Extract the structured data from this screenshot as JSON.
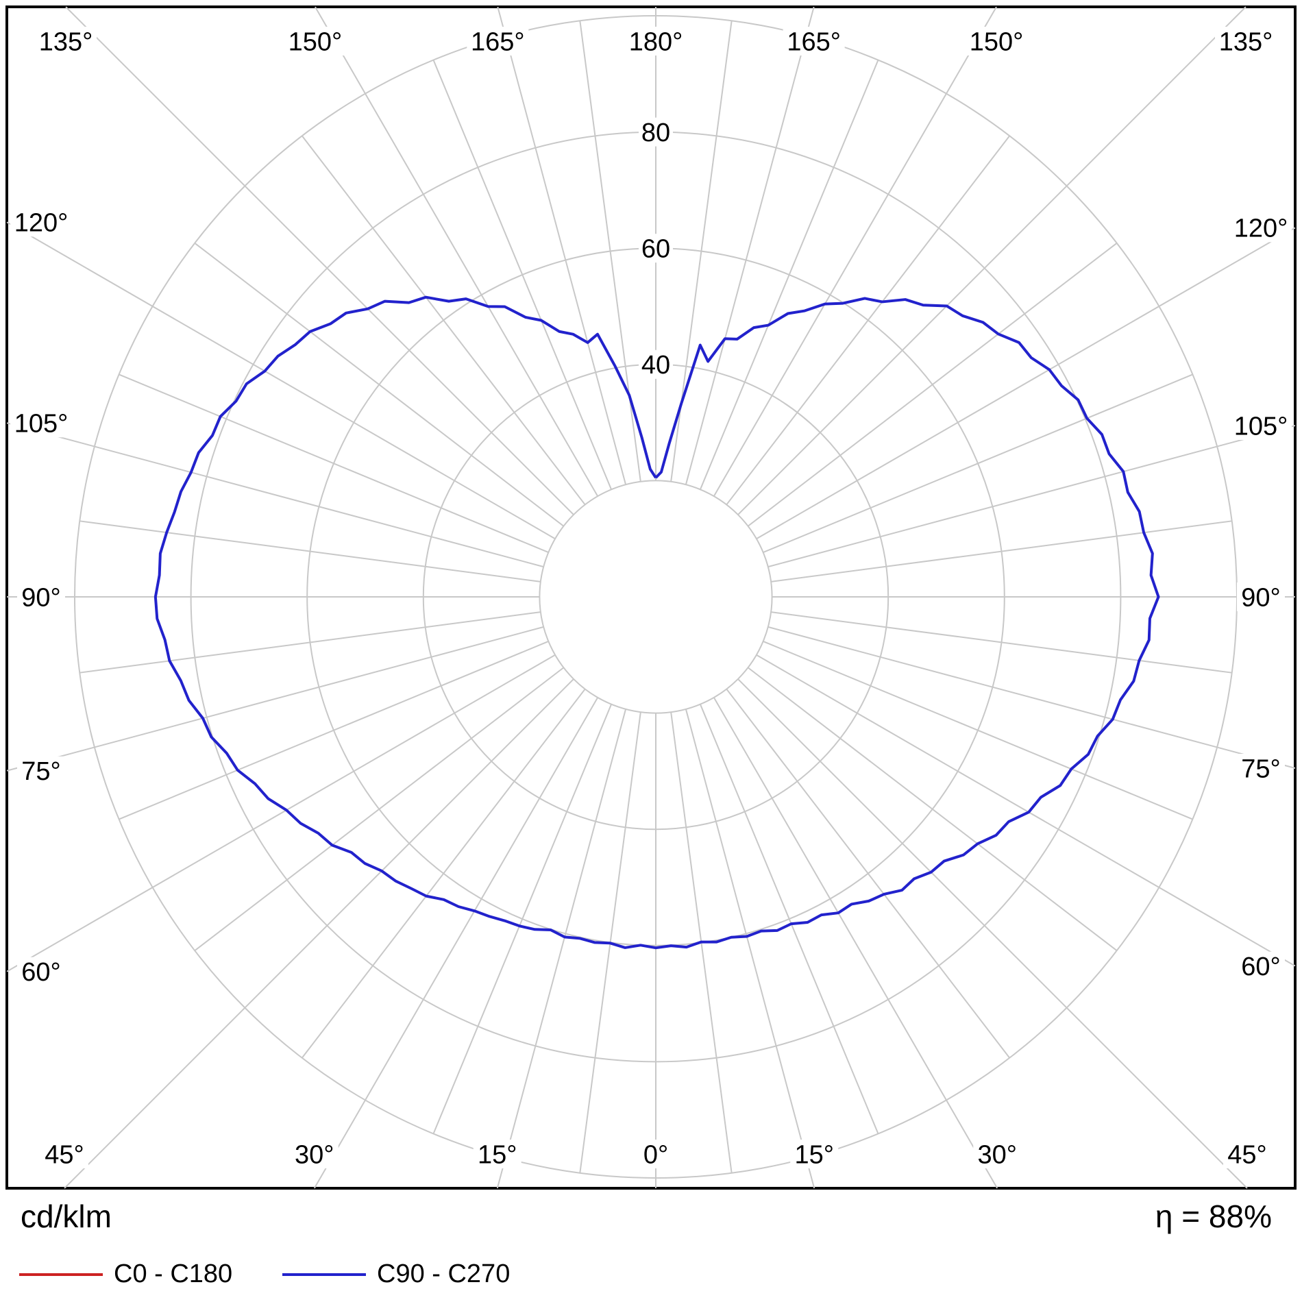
{
  "footer": {
    "unit_label": "cd/klm",
    "eta_label": "η = 88%",
    "legend": [
      {
        "label": "C0 - C180",
        "color": "#cc2222"
      },
      {
        "label": "C90 - C270",
        "color": "#2222cc"
      }
    ]
  },
  "chart_data": {
    "type": "line",
    "coordinate_system": "polar",
    "description": "Luminous intensity distribution curve (photometric polar diagram), gamma angle measured from nadir (0° bottom) to zenith (180° top), intensity in cd/klm",
    "units": "cd/klm",
    "efficiency": "η = 88%",
    "r_max": 100,
    "ring_step": 20,
    "rings": [
      20,
      40,
      60,
      80,
      100
    ],
    "labeled_rings": [
      {
        "value": 40,
        "label": "40"
      },
      {
        "value": 60,
        "label": "60"
      },
      {
        "value": 80,
        "label": "80"
      }
    ],
    "minor_spoke_step_deg": 7.5,
    "major_spoke_step_deg": 15,
    "grid_color": "#c8c8c8",
    "frame_color": "#000000",
    "legend_position": "bottom-left",
    "angle_labels": [
      {
        "gamma": 0,
        "label": "0°"
      },
      {
        "gamma": 15,
        "label": "15°"
      },
      {
        "gamma": 30,
        "label": "30°"
      },
      {
        "gamma": 45,
        "label": "45°"
      },
      {
        "gamma": 60,
        "label": "60°"
      },
      {
        "gamma": 75,
        "label": "75°"
      },
      {
        "gamma": 90,
        "label": "90°"
      },
      {
        "gamma": 105,
        "label": "105°"
      },
      {
        "gamma": 120,
        "label": "120°"
      },
      {
        "gamma": 135,
        "label": "135°"
      },
      {
        "gamma": 150,
        "label": "150°"
      },
      {
        "gamma": 165,
        "label": "165°"
      },
      {
        "gamma": 180,
        "label": "180°"
      }
    ],
    "series": [
      {
        "name": "C0 - C180",
        "color": "#cc2222",
        "visible": false
      },
      {
        "name": "C90 - C270",
        "color": "#2222cc",
        "gamma_start_deg": 0,
        "gamma_step_deg": 2.5,
        "right_half_values": [
          60.4,
          60.1,
          60.5,
          59.9,
          60.3,
          60.0,
          60.5,
          60.3,
          61.1,
          60.9,
          61.8,
          61.7,
          62.8,
          62.7,
          63.9,
          64.5,
          65.9,
          65.8,
          67.0,
          67.3,
          69.1,
          69.8,
          71.5,
          72.0,
          74.1,
          74.7,
          76.8,
          77.4,
          79.2,
          79.7,
          81.4,
          81.9,
          83.5,
          83.9,
          85.2,
          85.1,
          86.5,
          85.3,
          85.8,
          84.7,
          84.5,
          83.2,
          83.3,
          81.8,
          81.7,
          80.3,
          80.2,
          78.7,
          78.2,
          76.6,
          76.3,
          74.3,
          73.5,
          71.6,
          70.8,
          68.1,
          66.8,
          64.0,
          62.7,
          59.9,
          58.2,
          55.5,
          53.8,
          50.6,
          49.3,
          46.5,
          46.0,
          41.5,
          44.0,
          33.5,
          26.5,
          21.5,
          20.5
        ],
        "left_half_values": [
          60.4,
          60.0,
          60.6,
          60.1,
          60.4,
          60.2,
          60.6,
          60.1,
          60.9,
          61.3,
          61.5,
          62.0,
          62.4,
          63.2,
          63.6,
          64.9,
          65.5,
          66.3,
          66.7,
          67.9,
          68.4,
          70.2,
          70.9,
          72.5,
          73.4,
          75.2,
          76.1,
          77.9,
          78.6,
          80.2,
          80.7,
          82.3,
          83.0,
          84.4,
          84.8,
          85.9,
          86.1,
          85.5,
          85.6,
          84.9,
          84.1,
          83.7,
          82.8,
          82.5,
          81.2,
          81.1,
          79.7,
          79.4,
          77.7,
          77.1,
          75.7,
          75.0,
          73.1,
          72.3,
          70.1,
          69.0,
          66.1,
          65.0,
          62.1,
          60.8,
          57.7,
          56.3,
          53.1,
          51.5,
          48.6,
          47.4,
          45.3,
          46.3,
          40.3,
          35.0,
          27.5,
          22.0,
          20.5
        ]
      }
    ]
  }
}
